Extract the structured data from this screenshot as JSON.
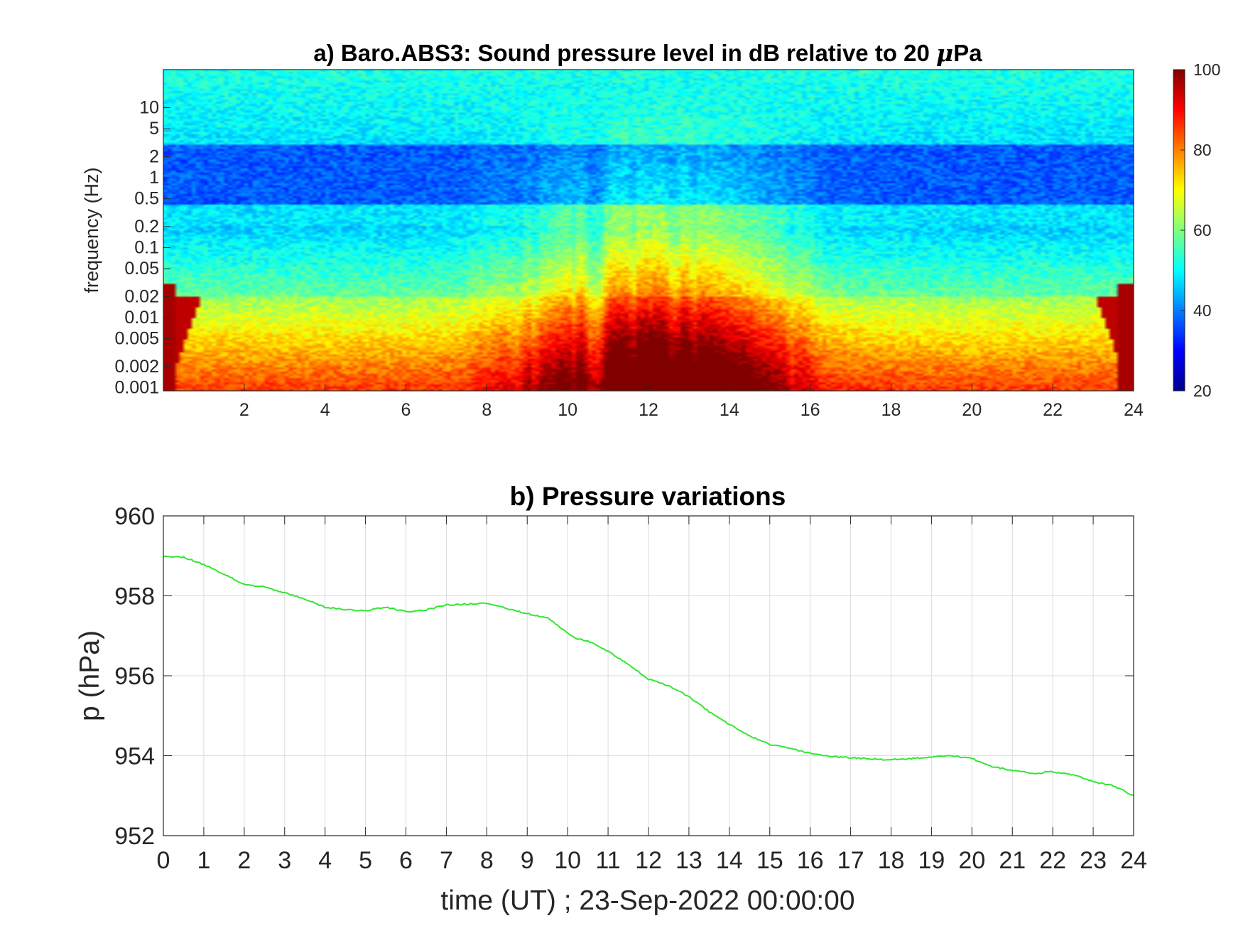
{
  "chart_data": [
    {
      "type": "heatmap",
      "title": "a) Baro.ABS3: Sound pressure level in dB relative to 20 μPa",
      "title_parts": {
        "main": "a) Baro.ABS3: Sound pressure level in dB relative to 20 ",
        "unit_symbol": "μ",
        "unit_rest": "Pa"
      },
      "xlabel": "",
      "ylabel": "frequency (Hz)",
      "x_ticks": [
        2,
        4,
        6,
        8,
        10,
        12,
        14,
        16,
        18,
        20,
        22,
        24
      ],
      "xlim": [
        0,
        24
      ],
      "y_scale": "log",
      "y_ticks": [
        0.001,
        0.002,
        0.005,
        0.01,
        0.02,
        0.05,
        0.1,
        0.2,
        0.5,
        1,
        2,
        5,
        10
      ],
      "y_tick_labels": [
        "0.001",
        "0.002",
        "0.005",
        "0.01",
        "0.02",
        "0.05",
        "0.1",
        "0.2",
        "0.5",
        "1",
        "2",
        "5",
        "10"
      ],
      "ylim": [
        0.0009,
        35
      ],
      "colorbar": {
        "colormap": "jet",
        "range": [
          20,
          100
        ],
        "ticks": [
          20,
          40,
          60,
          80,
          100
        ]
      },
      "features": {
        "low_freq_band_db": 85,
        "mid_band_db": 48,
        "blue_band_hz": [
          0.4,
          3
        ],
        "blue_band_db": 33,
        "active_period_hours": [
          7.5,
          16
        ]
      }
    },
    {
      "type": "line",
      "title": "b) Pressure variations",
      "xlabel": "time (UT) ; 23-Sep-2022 00:00:00",
      "ylabel": "p (hPa)",
      "xlim": [
        0,
        24
      ],
      "ylim": [
        952,
        960
      ],
      "x_ticks": [
        0,
        1,
        2,
        3,
        4,
        5,
        6,
        7,
        8,
        9,
        10,
        11,
        12,
        13,
        14,
        15,
        16,
        17,
        18,
        19,
        20,
        21,
        22,
        23,
        24
      ],
      "y_ticks": [
        952,
        954,
        956,
        958,
        960
      ],
      "grid": true,
      "line_color": "#33e633",
      "series": [
        {
          "x": [
            0,
            0.5,
            1,
            1.5,
            2,
            2.5,
            3,
            3.5,
            4,
            4.5,
            5,
            5.5,
            6,
            6.5,
            7,
            7.5,
            8,
            8.5,
            9,
            9.5,
            10,
            10.25,
            10.5,
            11,
            11.5,
            12,
            12.5,
            13,
            13.5,
            14,
            14.5,
            15,
            15.5,
            16,
            16.5,
            17,
            17.5,
            18,
            18.5,
            19,
            19.5,
            20,
            20.5,
            21,
            21.5,
            22,
            22.5,
            23,
            23.5,
            24
          ],
          "y": [
            958.98,
            958.97,
            958.78,
            958.55,
            958.28,
            958.22,
            958.08,
            957.92,
            957.72,
            957.65,
            957.63,
            957.72,
            957.6,
            957.65,
            957.77,
            957.79,
            957.82,
            957.68,
            957.55,
            957.45,
            957.08,
            956.92,
            956.87,
            956.62,
            956.28,
            955.92,
            955.75,
            955.48,
            955.1,
            954.78,
            954.5,
            954.28,
            954.18,
            954.06,
            953.98,
            953.95,
            953.92,
            953.9,
            953.93,
            953.96,
            954.0,
            953.93,
            953.73,
            953.63,
            953.55,
            953.6,
            953.52,
            953.35,
            953.25,
            953.0
          ]
        }
      ]
    }
  ]
}
